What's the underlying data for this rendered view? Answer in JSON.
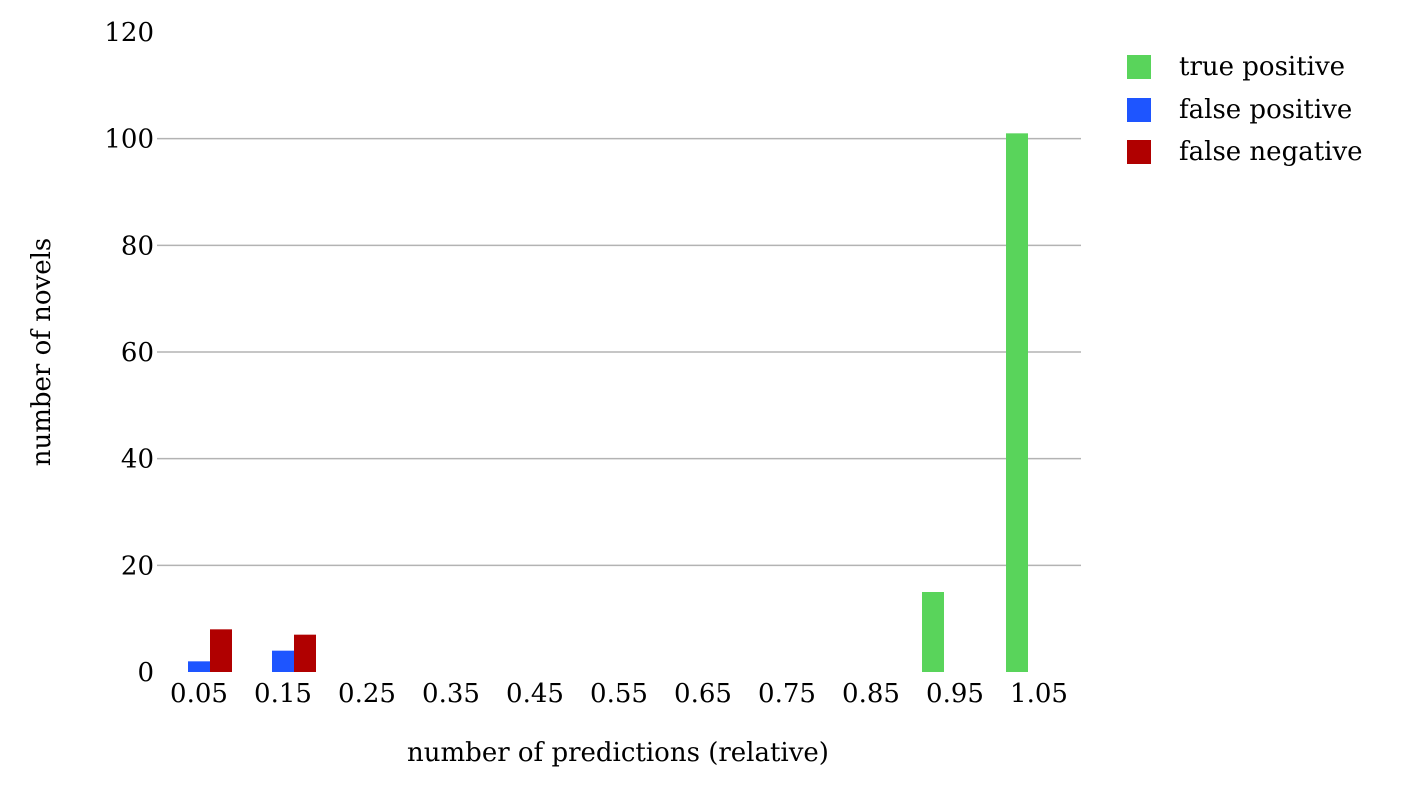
{
  "chart_data": {
    "type": "bar",
    "title": "",
    "xlabel": "number of predictions (relative)",
    "ylabel": "number of novels",
    "categories": [
      "0.05",
      "0.15",
      "0.25",
      "0.35",
      "0.45",
      "0.55",
      "0.65",
      "0.75",
      "0.85",
      "0.95",
      "1.05"
    ],
    "ylim": [
      0,
      120
    ],
    "yticks": [
      "0",
      "20",
      "40",
      "60",
      "80",
      "100",
      "120"
    ],
    "grid": true,
    "legend_position": "top-right",
    "series": [
      {
        "name": "true positive",
        "color": "#59d45b",
        "values": [
          0,
          0,
          0,
          0,
          0,
          0,
          0,
          0,
          0,
          15,
          101
        ]
      },
      {
        "name": "false positive",
        "color": "#1e55ff",
        "values": [
          2,
          4,
          0,
          0,
          0,
          0,
          0,
          0,
          0,
          0,
          0
        ]
      },
      {
        "name": "false negative",
        "color": "#b00000",
        "values": [
          8,
          7,
          0,
          0,
          0,
          0,
          0,
          0,
          0,
          0,
          0
        ]
      }
    ]
  }
}
